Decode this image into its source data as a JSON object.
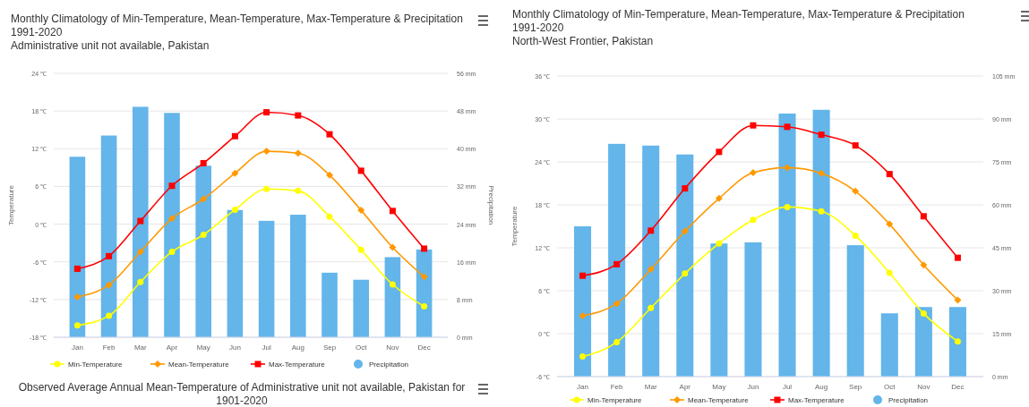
{
  "chart_data": [
    {
      "type": "bar",
      "title": "Monthly Climatology of Min-Temperature, Mean-Temperature, Max-Temperature & Precipitation",
      "subtitle": "1991-2020\nAdministrative unit not available, Pakistan",
      "ylabel": "Temperature",
      "y2label": "Precipitation",
      "categories": [
        "Jan",
        "Feb",
        "Mar",
        "Apr",
        "May",
        "Jun",
        "Jul",
        "Aug",
        "Sep",
        "Oct",
        "Nov",
        "Dec"
      ],
      "series": [
        {
          "name": "Min-Temperature",
          "type": "line",
          "marker": "circle",
          "color": "#ffff00",
          "values": [
            -16.1,
            -14.6,
            -9.2,
            -4.4,
            -1.7,
            2.3,
            5.6,
            5.3,
            1.2,
            -4.1,
            -9.6,
            -13.1
          ]
        },
        {
          "name": "Mean-Temperature",
          "type": "line",
          "marker": "diamond",
          "color": "#ff9900",
          "values": [
            -11.6,
            -9.7,
            -4.4,
            0.9,
            4.0,
            8.1,
            11.6,
            11.3,
            7.8,
            2.2,
            -3.7,
            -8.4
          ]
        },
        {
          "name": "Max-Temperature",
          "type": "line",
          "marker": "square",
          "color": "#ff0000",
          "values": [
            -7.1,
            -5.1,
            0.5,
            6.1,
            9.7,
            14.0,
            17.8,
            17.3,
            14.3,
            8.5,
            2.1,
            -3.9
          ]
        },
        {
          "name": "Precipitation",
          "axis": "y2",
          "color": "#63b5ea",
          "values": [
            38.3,
            42.8,
            48.9,
            47.6,
            36.4,
            27.0,
            24.7,
            26.0,
            13.7,
            12.2,
            17.0,
            18.6
          ]
        }
      ],
      "ylim": [
        -18,
        24
      ],
      "yticks": [
        {
          "value": -18,
          "label": "-18 ℃"
        },
        {
          "value": -12,
          "label": "-12 ℃"
        },
        {
          "value": -6,
          "label": "-6 ℃"
        },
        {
          "value": 0,
          "label": "0 ℃"
        },
        {
          "value": 6,
          "label": "6 ℃"
        },
        {
          "value": 12,
          "label": "12 ℃"
        },
        {
          "value": 18,
          "label": "18 ℃"
        },
        {
          "value": 24,
          "label": "24 ℃"
        }
      ],
      "y2lim": [
        0,
        56
      ],
      "y2ticks": [
        {
          "value": 0,
          "label": "0 mm"
        },
        {
          "value": 8,
          "label": "8 mm"
        },
        {
          "value": 16,
          "label": "16 mm"
        },
        {
          "value": 24,
          "label": "24 mm"
        },
        {
          "value": 32,
          "label": "32 mm"
        },
        {
          "value": 40,
          "label": "40 mm"
        },
        {
          "value": 48,
          "label": "48 mm"
        },
        {
          "value": 56,
          "label": "56 mm"
        }
      ],
      "grid": "y",
      "legend": "bottom",
      "line_style": "solid",
      "annotations": [
        "Observed Average Annual Mean-Temperature of Administrative unit not available, Pakistan for\n1901-2020"
      ]
    },
    {
      "type": "bar",
      "title": "Monthly Climatology of Min-Temperature, Mean-Temperature, Max-Temperature & Precipitation",
      "subtitle": "1991-2020\nNorth-West Frontier, Pakistan",
      "ylabel": "Temperature",
      "categories": [
        "Jan",
        "Feb",
        "Mar",
        "Apr",
        "May",
        "Jun",
        "Jul",
        "Aug",
        "Sep",
        "Oct",
        "Nov",
        "Dec"
      ],
      "series": [
        {
          "name": "Min-Temperature",
          "type": "line",
          "marker": "circle",
          "color": "#ffff00",
          "values": [
            -3.2,
            -1.2,
            3.6,
            8.4,
            12.6,
            15.9,
            17.7,
            17.1,
            13.7,
            8.5,
            2.8,
            -1.1
          ]
        },
        {
          "name": "Mean-Temperature",
          "type": "line",
          "marker": "diamond",
          "color": "#ff9900",
          "values": [
            2.5,
            4.2,
            9.0,
            14.3,
            18.9,
            22.5,
            23.2,
            22.4,
            19.9,
            15.3,
            9.6,
            4.7
          ]
        },
        {
          "name": "Max-Temperature",
          "type": "line",
          "marker": "square",
          "color": "#ff0000",
          "values": [
            8.1,
            9.7,
            14.4,
            20.3,
            25.4,
            29.1,
            28.9,
            27.8,
            26.3,
            22.3,
            16.4,
            10.6
          ]
        },
        {
          "name": "Precipitation",
          "axis": "y2",
          "color": "#63b5ea",
          "values": [
            52.5,
            81.3,
            80.7,
            77.6,
            46.5,
            46.9,
            91.9,
            93.2,
            45.9,
            22.1,
            24.3,
            24.3
          ]
        }
      ],
      "ylim": [
        -6,
        36
      ],
      "yticks": [
        {
          "value": -6,
          "label": "-6 ℃"
        },
        {
          "value": 0,
          "label": "0 ℃"
        },
        {
          "value": 6,
          "label": "6 ℃"
        },
        {
          "value": 12,
          "label": "12 ℃"
        },
        {
          "value": 18,
          "label": "18 ℃"
        },
        {
          "value": 24,
          "label": "24 ℃"
        },
        {
          "value": 30,
          "label": "30 ℃"
        },
        {
          "value": 36,
          "label": "36 ℃"
        }
      ],
      "y2lim": [
        0,
        105
      ],
      "y2ticks": [
        {
          "value": 0,
          "label": "0 mm"
        },
        {
          "value": 15,
          "label": "15 mm"
        },
        {
          "value": 30,
          "label": "30 mm"
        },
        {
          "value": 45,
          "label": "45 mm"
        },
        {
          "value": 60,
          "label": "60 mm"
        },
        {
          "value": 75,
          "label": "75 mm"
        },
        {
          "value": 90,
          "label": "90 mm"
        },
        {
          "value": 105,
          "label": "105 mm"
        }
      ],
      "grid": "y",
      "legend": "bottom",
      "line_style": "solid"
    }
  ]
}
